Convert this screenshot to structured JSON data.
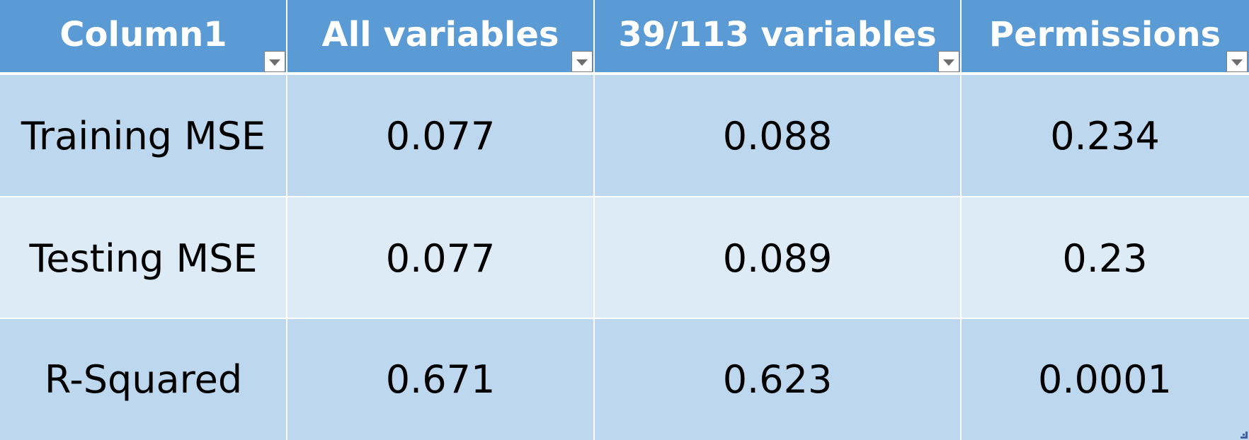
{
  "table": {
    "headers": [
      "Column1",
      "All variables",
      "39/113 variables",
      "Permissions"
    ],
    "rows": [
      {
        "label": "Training MSE",
        "values": [
          "0.077",
          "0.088",
          "0.234"
        ]
      },
      {
        "label": "Testing MSE",
        "values": [
          "0.077",
          "0.089",
          "0.23"
        ]
      },
      {
        "label": "R-Squared",
        "values": [
          "0.671",
          "0.623",
          "0.0001"
        ]
      }
    ]
  },
  "icons": {
    "filter": "chevron-down-icon",
    "resize": "resize-handle-icon"
  },
  "colors": {
    "header_bg": "#5b9bd5",
    "header_text": "#ffffff",
    "row_dark": "#bdd7ee",
    "row_light": "#ddebf7",
    "cell_text": "#000000"
  }
}
